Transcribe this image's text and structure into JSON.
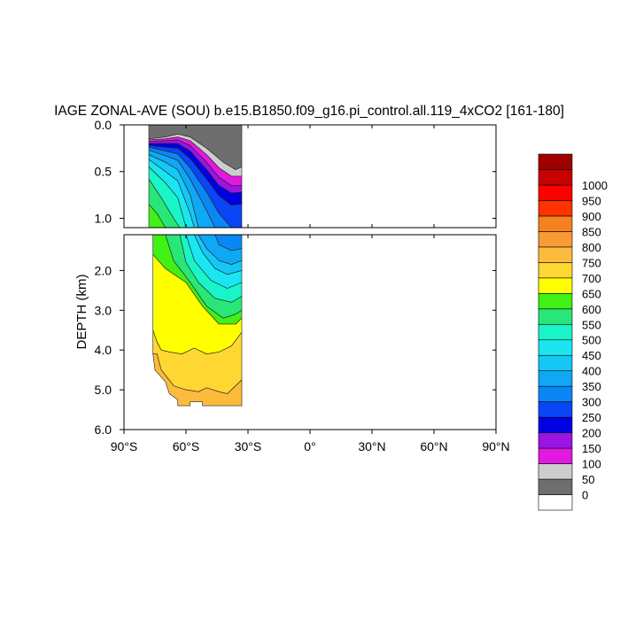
{
  "chart_data": {
    "type": "heatmap",
    "title": "IAGE ZONAL-AVE (SOU) b.e15.B1850.f09_g16.pi_control.all.119_4xCO2 [161-180]",
    "ylabel": "DEPTH (km)",
    "xlabel": "",
    "xlim": [
      -90,
      90
    ],
    "ylim_top_panel": [
      0.0,
      1.1
    ],
    "ylim_bottom_panel": [
      1.1,
      6.0
    ],
    "x_ticks": [
      -90,
      -60,
      -30,
      0,
      30,
      60,
      90
    ],
    "x_tick_labels": [
      "90°S",
      "60°S",
      "30°S",
      "0°",
      "30°N",
      "60°N",
      "90°N"
    ],
    "y_ticks_top": [
      0.0,
      0.5,
      1.0
    ],
    "y_tick_labels_top": [
      "0.0",
      "0.5",
      "1.0"
    ],
    "y_ticks_bottom": [
      2.0,
      3.0,
      4.0,
      5.0,
      6.0
    ],
    "y_tick_labels_bottom": [
      "2.0",
      "3.0",
      "4.0",
      "5.0",
      "6.0"
    ],
    "data_lat_range": [
      -78,
      -33
    ],
    "grid": false,
    "colorbar": {
      "position": "right",
      "levels": [
        "0",
        "50",
        "100",
        "150",
        "200",
        "250",
        "300",
        "350",
        "400",
        "450",
        "500",
        "550",
        "600",
        "650",
        "700",
        "750",
        "800",
        "850",
        "900",
        "950",
        "1000"
      ],
      "colors": [
        "#ffffff",
        "#6e6e6e",
        "#cdcdcd",
        "#e119e1",
        "#9b14e1",
        "#0000e1",
        "#0a46f5",
        "#0a87f5",
        "#0fa8f5",
        "#14c8f5",
        "#19e6f0",
        "#19f5c8",
        "#28e678",
        "#41f014",
        "#ffff00",
        "#ffd732",
        "#fcbb3c",
        "#f99a32",
        "#f5821e",
        "#ff3200",
        "#ff0000",
        "#c80000",
        "#a00000"
      ]
    },
    "contour_levels": [
      {
        "min": 0,
        "max": 50,
        "boundary": [
          [
            -78,
            0.0
          ],
          [
            -60,
            0.0
          ],
          [
            -33,
            0.0
          ],
          [
            -33,
            0.45
          ],
          [
            -36,
            0.48
          ],
          [
            -42,
            0.4
          ],
          [
            -50,
            0.25
          ],
          [
            -58,
            0.13
          ],
          [
            -64,
            0.1
          ],
          [
            -70,
            0.13
          ],
          [
            -78,
            0.15
          ]
        ]
      },
      {
        "min": 50,
        "max": 100,
        "boundary": [
          [
            -33,
            0.45
          ],
          [
            -36,
            0.48
          ],
          [
            -42,
            0.4
          ],
          [
            -50,
            0.25
          ],
          [
            -58,
            0.13
          ],
          [
            -64,
            0.1
          ],
          [
            -70,
            0.13
          ],
          [
            -78,
            0.15
          ],
          [
            -78,
            0.16
          ],
          [
            -70,
            0.15
          ],
          [
            -64,
            0.13
          ],
          [
            -58,
            0.17
          ],
          [
            -50,
            0.32
          ],
          [
            -44,
            0.46
          ],
          [
            -38,
            0.55
          ],
          [
            -33,
            0.55
          ]
        ]
      },
      {
        "min": 100,
        "max": 150,
        "boundary": [
          [
            -33,
            0.55
          ],
          [
            -38,
            0.55
          ],
          [
            -44,
            0.46
          ],
          [
            -50,
            0.32
          ],
          [
            -58,
            0.17
          ],
          [
            -64,
            0.13
          ],
          [
            -70,
            0.15
          ],
          [
            -78,
            0.16
          ],
          [
            -78,
            0.18
          ],
          [
            -70,
            0.17
          ],
          [
            -64,
            0.16
          ],
          [
            -58,
            0.22
          ],
          [
            -50,
            0.4
          ],
          [
            -44,
            0.56
          ],
          [
            -38,
            0.65
          ],
          [
            -33,
            0.65
          ]
        ]
      },
      {
        "min": 150,
        "max": 200,
        "boundary": [
          [
            -33,
            0.65
          ],
          [
            -38,
            0.65
          ],
          [
            -44,
            0.56
          ],
          [
            -50,
            0.4
          ],
          [
            -58,
            0.22
          ],
          [
            -64,
            0.16
          ],
          [
            -70,
            0.17
          ],
          [
            -78,
            0.18
          ],
          [
            -78,
            0.2
          ],
          [
            -70,
            0.2
          ],
          [
            -64,
            0.2
          ],
          [
            -58,
            0.28
          ],
          [
            -50,
            0.48
          ],
          [
            -44,
            0.65
          ],
          [
            -38,
            0.73
          ],
          [
            -33,
            0.72
          ]
        ]
      },
      {
        "min": 200,
        "max": 250,
        "boundary": [
          [
            -33,
            0.72
          ],
          [
            -38,
            0.73
          ],
          [
            -44,
            0.65
          ],
          [
            -50,
            0.48
          ],
          [
            -58,
            0.28
          ],
          [
            -64,
            0.2
          ],
          [
            -70,
            0.2
          ],
          [
            -78,
            0.2
          ],
          [
            -78,
            0.22
          ],
          [
            -70,
            0.24
          ],
          [
            -64,
            0.25
          ],
          [
            -58,
            0.36
          ],
          [
            -50,
            0.58
          ],
          [
            -44,
            0.76
          ],
          [
            -38,
            0.86
          ],
          [
            -33,
            0.85
          ]
        ]
      },
      {
        "min": 250,
        "max": 300,
        "boundary": [
          [
            -33,
            0.85
          ],
          [
            -38,
            0.86
          ],
          [
            -44,
            0.76
          ],
          [
            -50,
            0.58
          ],
          [
            -58,
            0.36
          ],
          [
            -64,
            0.25
          ],
          [
            -70,
            0.24
          ],
          [
            -78,
            0.22
          ],
          [
            -78,
            0.24
          ],
          [
            -70,
            0.28
          ],
          [
            -64,
            0.31
          ],
          [
            -58,
            0.46
          ],
          [
            -50,
            0.72
          ],
          [
            -44,
            0.95
          ],
          [
            -38,
            1.1
          ],
          [
            -33,
            1.1
          ]
        ]
      },
      {
        "min": 300,
        "max": 350,
        "boundary": [
          [
            -33,
            1.1
          ],
          [
            -38,
            1.1
          ],
          [
            -44,
            0.95
          ],
          [
            -50,
            0.72
          ],
          [
            -58,
            0.46
          ],
          [
            -64,
            0.31
          ],
          [
            -70,
            0.28
          ],
          [
            -78,
            0.24
          ],
          [
            -78,
            0.27
          ],
          [
            -70,
            0.33
          ],
          [
            -64,
            0.38
          ],
          [
            -58,
            0.58
          ],
          [
            -50,
            0.92
          ],
          [
            -46,
            1.1
          ],
          [
            -44,
            1.35
          ],
          [
            -38,
            1.5
          ],
          [
            -33,
            1.45
          ]
        ]
      },
      {
        "min": 350,
        "max": 400,
        "boundary": [
          [
            -33,
            1.45
          ],
          [
            -38,
            1.5
          ],
          [
            -44,
            1.35
          ],
          [
            -46,
            1.1
          ],
          [
            -50,
            0.92
          ],
          [
            -58,
            0.58
          ],
          [
            -64,
            0.38
          ],
          [
            -70,
            0.33
          ],
          [
            -78,
            0.27
          ],
          [
            -78,
            0.32
          ],
          [
            -70,
            0.4
          ],
          [
            -64,
            0.48
          ],
          [
            -58,
            0.75
          ],
          [
            -54,
            1.1
          ],
          [
            -50,
            1.45
          ],
          [
            -44,
            1.75
          ],
          [
            -38,
            1.85
          ],
          [
            -33,
            1.75
          ]
        ]
      },
      {
        "min": 400,
        "max": 450,
        "boundary": [
          [
            -33,
            1.75
          ],
          [
            -38,
            1.85
          ],
          [
            -44,
            1.75
          ],
          [
            -50,
            1.45
          ],
          [
            -54,
            1.1
          ],
          [
            -58,
            0.75
          ],
          [
            -64,
            0.48
          ],
          [
            -70,
            0.4
          ],
          [
            -78,
            0.32
          ],
          [
            -78,
            0.37
          ],
          [
            -70,
            0.5
          ],
          [
            -64,
            0.6
          ],
          [
            -58,
            0.95
          ],
          [
            -56,
            1.1
          ],
          [
            -52,
            1.55
          ],
          [
            -46,
            1.95
          ],
          [
            -40,
            2.1
          ],
          [
            -33,
            2.0
          ]
        ]
      },
      {
        "min": 450,
        "max": 500,
        "boundary": [
          [
            -33,
            2.0
          ],
          [
            -40,
            2.1
          ],
          [
            -46,
            1.95
          ],
          [
            -52,
            1.55
          ],
          [
            -56,
            1.1
          ],
          [
            -58,
            0.95
          ],
          [
            -64,
            0.6
          ],
          [
            -70,
            0.5
          ],
          [
            -78,
            0.37
          ],
          [
            -78,
            0.45
          ],
          [
            -70,
            0.62
          ],
          [
            -64,
            0.78
          ],
          [
            -60,
            1.1
          ],
          [
            -56,
            1.75
          ],
          [
            -48,
            2.25
          ],
          [
            -40,
            2.45
          ],
          [
            -33,
            2.3
          ]
        ]
      },
      {
        "min": 500,
        "max": 550,
        "boundary": [
          [
            -33,
            2.3
          ],
          [
            -40,
            2.45
          ],
          [
            -48,
            2.25
          ],
          [
            -56,
            1.75
          ],
          [
            -60,
            1.1
          ],
          [
            -64,
            0.78
          ],
          [
            -70,
            0.62
          ],
          [
            -78,
            0.45
          ],
          [
            -78,
            0.58
          ],
          [
            -72,
            0.78
          ],
          [
            -66,
            1.0
          ],
          [
            -63,
            1.1
          ],
          [
            -60,
            1.8
          ],
          [
            -54,
            2.3
          ],
          [
            -46,
            2.7
          ],
          [
            -38,
            2.8
          ],
          [
            -33,
            2.65
          ]
        ]
      },
      {
        "min": 550,
        "max": 600,
        "boundary": [
          [
            -33,
            2.65
          ],
          [
            -38,
            2.8
          ],
          [
            -46,
            2.7
          ],
          [
            -54,
            2.3
          ],
          [
            -60,
            1.8
          ],
          [
            -63,
            1.1
          ],
          [
            -66,
            1.0
          ],
          [
            -72,
            0.78
          ],
          [
            -78,
            0.58
          ],
          [
            -78,
            0.85
          ],
          [
            -74,
            0.95
          ],
          [
            -70,
            1.1
          ],
          [
            -66,
            1.75
          ],
          [
            -58,
            2.3
          ],
          [
            -50,
            2.9
          ],
          [
            -42,
            3.2
          ],
          [
            -36,
            3.1
          ],
          [
            -33,
            3.0
          ]
        ]
      },
      {
        "min": 600,
        "max": 650,
        "boundary": [
          [
            -33,
            3.0
          ],
          [
            -36,
            3.1
          ],
          [
            -42,
            3.2
          ],
          [
            -50,
            2.9
          ],
          [
            -58,
            2.3
          ],
          [
            -66,
            1.75
          ],
          [
            -70,
            1.1
          ],
          [
            -74,
            0.95
          ],
          [
            -78,
            0.85
          ],
          [
            -78,
            1.1
          ],
          [
            -76,
            1.1
          ],
          [
            -76,
            1.6
          ],
          [
            -70,
            1.95
          ],
          [
            -60,
            2.3
          ],
          [
            -52,
            2.9
          ],
          [
            -44,
            3.35
          ],
          [
            -36,
            3.35
          ],
          [
            -33,
            3.2
          ]
        ]
      },
      {
        "min": 650,
        "max": 700,
        "boundary": [
          [
            -33,
            3.2
          ],
          [
            -36,
            3.35
          ],
          [
            -44,
            3.35
          ],
          [
            -52,
            2.9
          ],
          [
            -60,
            2.3
          ],
          [
            -70,
            1.95
          ],
          [
            -76,
            1.6
          ],
          [
            -76,
            3.5
          ],
          [
            -74,
            3.8
          ],
          [
            -72,
            4.0
          ],
          [
            -68,
            4.05
          ],
          [
            -62,
            4.1
          ],
          [
            -56,
            3.95
          ],
          [
            -50,
            4.1
          ],
          [
            -44,
            4.05
          ],
          [
            -38,
            3.9
          ],
          [
            -33,
            3.55
          ]
        ]
      },
      {
        "min": 700,
        "max": 750,
        "boundary": [
          [
            -33,
            3.55
          ],
          [
            -38,
            3.9
          ],
          [
            -44,
            4.05
          ],
          [
            -50,
            4.1
          ],
          [
            -56,
            3.95
          ],
          [
            -62,
            4.1
          ],
          [
            -68,
            4.05
          ],
          [
            -72,
            4.0
          ],
          [
            -74,
            3.8
          ],
          [
            -76,
            3.5
          ],
          [
            -76,
            4.1
          ],
          [
            -74,
            4.1
          ],
          [
            -72,
            4.5
          ],
          [
            -69,
            4.7
          ],
          [
            -66,
            4.9
          ],
          [
            -60,
            5.0
          ],
          [
            -54,
            5.05
          ],
          [
            -50,
            4.95
          ],
          [
            -44,
            5.05
          ],
          [
            -40,
            5.1
          ],
          [
            -36,
            4.9
          ],
          [
            -33,
            4.75
          ]
        ]
      },
      {
        "min": 750,
        "max": 800,
        "boundary": [
          [
            -33,
            4.75
          ],
          [
            -36,
            4.9
          ],
          [
            -40,
            5.1
          ],
          [
            -44,
            5.05
          ],
          [
            -50,
            4.95
          ],
          [
            -54,
            5.05
          ],
          [
            -60,
            5.0
          ],
          [
            -66,
            4.9
          ],
          [
            -69,
            4.7
          ],
          [
            -72,
            4.5
          ],
          [
            -74,
            4.1
          ],
          [
            -76,
            4.1
          ],
          [
            -75,
            4.5
          ],
          [
            -70,
            4.8
          ],
          [
            -68,
            5.1
          ],
          [
            -64,
            5.25
          ],
          [
            -64,
            5.4
          ],
          [
            -58,
            5.4
          ],
          [
            -58,
            5.3
          ],
          [
            -52,
            5.3
          ],
          [
            -52,
            5.4
          ],
          [
            -33,
            5.4
          ]
        ]
      }
    ]
  }
}
